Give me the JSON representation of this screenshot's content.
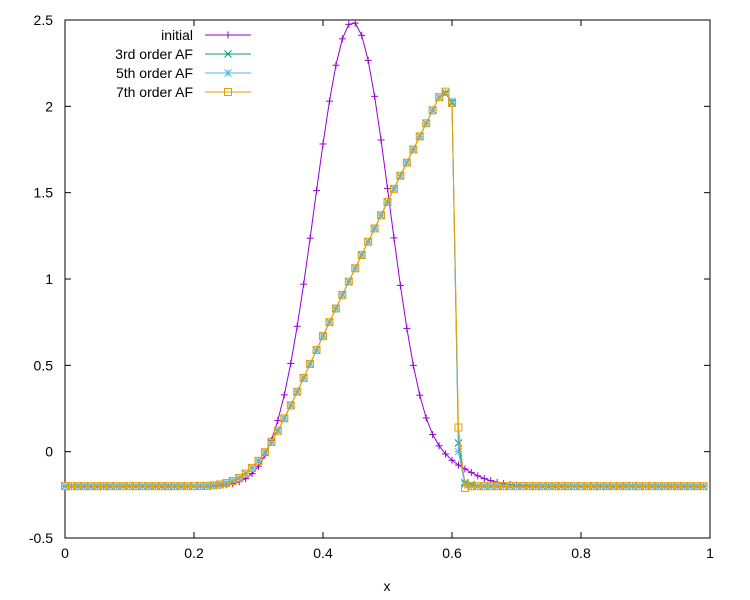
{
  "chart_data": {
    "type": "line",
    "title": "",
    "xlabel": "x",
    "ylabel": "",
    "xlim": [
      0,
      1
    ],
    "ylim": [
      -0.5,
      2.5
    ],
    "xticks": [
      0,
      0.2,
      0.4,
      0.6,
      0.8,
      1
    ],
    "xtick_labels": [
      "0",
      "0.2",
      "0.4",
      "0.6",
      "0.8",
      "1"
    ],
    "yticks": [
      -0.5,
      0,
      0.5,
      1,
      1.5,
      2,
      2.5
    ],
    "ytick_labels": [
      "-0.5",
      "0",
      "0.5",
      "1",
      "1.5",
      "2",
      "2.5"
    ],
    "grid": false,
    "legend_position": "top-left",
    "series": [
      {
        "name": "initial",
        "color": "#9400d3",
        "marker": "plus",
        "x": [
          0,
          0.01,
          0.02,
          0.03,
          0.04,
          0.05,
          0.06,
          0.07,
          0.08,
          0.09,
          0.1,
          0.11,
          0.12,
          0.13,
          0.14,
          0.15,
          0.16,
          0.17,
          0.18,
          0.19,
          0.2,
          0.21,
          0.22,
          0.23,
          0.24,
          0.25,
          0.26,
          0.27,
          0.28,
          0.29,
          0.3,
          0.31,
          0.32,
          0.33,
          0.34,
          0.35,
          0.36,
          0.37,
          0.38,
          0.39,
          0.4,
          0.41,
          0.42,
          0.43,
          0.44,
          0.45,
          0.46,
          0.47,
          0.48,
          0.49,
          0.5,
          0.51,
          0.52,
          0.53,
          0.54,
          0.55,
          0.56,
          0.57,
          0.58,
          0.59,
          0.6,
          0.61,
          0.62,
          0.63,
          0.64,
          0.65,
          0.66,
          0.67,
          0.68,
          0.69,
          0.7,
          0.71,
          0.72,
          0.73,
          0.74,
          0.75,
          0.76,
          0.77,
          0.78,
          0.79,
          0.8,
          0.81,
          0.82,
          0.83,
          0.84,
          0.85,
          0.86,
          0.87,
          0.88,
          0.89,
          0.9,
          0.91,
          0.92,
          0.93,
          0.94,
          0.95,
          0.96,
          0.97,
          0.98,
          0.99
        ],
        "y": [
          -0.2,
          -0.2,
          -0.2,
          -0.2,
          -0.2,
          -0.2,
          -0.2,
          -0.2,
          -0.2,
          -0.2,
          -0.2,
          -0.2,
          -0.2,
          -0.2,
          -0.2,
          -0.2,
          -0.2,
          -0.2,
          -0.2,
          -0.2,
          -0.2,
          -0.2,
          -0.199,
          -0.198,
          -0.196,
          -0.192,
          -0.186,
          -0.174,
          -0.156,
          -0.127,
          -0.084,
          -0.021,
          0.065,
          0.181,
          0.329,
          0.511,
          0.726,
          0.97,
          1.236,
          1.512,
          1.782,
          2.03,
          2.238,
          2.391,
          2.475,
          2.482,
          2.411,
          2.266,
          2.058,
          1.805,
          1.525,
          1.238,
          0.963,
          0.714,
          0.5,
          0.327,
          0.195,
          0.099,
          0.034,
          -0.013,
          -0.05,
          -0.078,
          -0.1,
          -0.12,
          -0.14,
          -0.156,
          -0.168,
          -0.178,
          -0.185,
          -0.19,
          -0.194,
          -0.196,
          -0.198,
          -0.199,
          -0.2,
          -0.2,
          -0.2,
          -0.2,
          -0.2,
          -0.2,
          -0.2,
          -0.2,
          -0.2,
          -0.2,
          -0.2,
          -0.2,
          -0.2,
          -0.2,
          -0.2,
          -0.2,
          -0.2,
          -0.2,
          -0.2,
          -0.2,
          -0.2,
          -0.2,
          -0.2,
          -0.2,
          -0.2,
          -0.2
        ]
      },
      {
        "name": "3rd order AF",
        "color": "#009e73",
        "marker": "x",
        "x": [
          0,
          0.01,
          0.02,
          0.03,
          0.04,
          0.05,
          0.06,
          0.07,
          0.08,
          0.09,
          0.1,
          0.11,
          0.12,
          0.13,
          0.14,
          0.15,
          0.16,
          0.17,
          0.18,
          0.19,
          0.2,
          0.21,
          0.22,
          0.23,
          0.24,
          0.25,
          0.26,
          0.27,
          0.28,
          0.29,
          0.3,
          0.31,
          0.32,
          0.33,
          0.34,
          0.35,
          0.36,
          0.37,
          0.38,
          0.39,
          0.4,
          0.41,
          0.42,
          0.43,
          0.44,
          0.45,
          0.46,
          0.47,
          0.48,
          0.49,
          0.5,
          0.51,
          0.52,
          0.53,
          0.54,
          0.55,
          0.56,
          0.57,
          0.58,
          0.59,
          0.6,
          0.61,
          0.62,
          0.63,
          0.64,
          0.65,
          0.66,
          0.67,
          0.68,
          0.69,
          0.7,
          0.71,
          0.72,
          0.73,
          0.74,
          0.75,
          0.76,
          0.77,
          0.78,
          0.79,
          0.8,
          0.81,
          0.82,
          0.83,
          0.84,
          0.85,
          0.86,
          0.87,
          0.88,
          0.89,
          0.9,
          0.91,
          0.92,
          0.93,
          0.94,
          0.95,
          0.96,
          0.97,
          0.98,
          0.99
        ],
        "y": [
          -0.2,
          -0.2,
          -0.2,
          -0.2,
          -0.2,
          -0.2,
          -0.2,
          -0.2,
          -0.2,
          -0.2,
          -0.2,
          -0.2,
          -0.2,
          -0.2,
          -0.2,
          -0.2,
          -0.2,
          -0.2,
          -0.2,
          -0.2,
          -0.2,
          -0.199,
          -0.198,
          -0.195,
          -0.19,
          -0.182,
          -0.17,
          -0.152,
          -0.127,
          -0.094,
          -0.053,
          -0.003,
          0.056,
          0.121,
          0.193,
          0.268,
          0.347,
          0.427,
          0.508,
          0.589,
          0.669,
          0.75,
          0.829,
          0.908,
          0.985,
          1.062,
          1.139,
          1.216,
          1.293,
          1.369,
          1.446,
          1.522,
          1.598,
          1.674,
          1.75,
          1.826,
          1.902,
          1.977,
          2.053,
          2.075,
          2.02,
          0.05,
          -0.18,
          -0.19,
          -0.2,
          -0.2,
          -0.2,
          -0.2,
          -0.2,
          -0.2,
          -0.2,
          -0.2,
          -0.2,
          -0.2,
          -0.2,
          -0.2,
          -0.2,
          -0.2,
          -0.2,
          -0.2,
          -0.2,
          -0.2,
          -0.2,
          -0.2,
          -0.2,
          -0.2,
          -0.2,
          -0.2,
          -0.2,
          -0.2,
          -0.2,
          -0.2,
          -0.2,
          -0.2,
          -0.2,
          -0.2,
          -0.2,
          -0.2,
          -0.2,
          -0.2
        ]
      },
      {
        "name": "5th order AF",
        "color": "#56b4e9",
        "marker": "star",
        "x": [
          0,
          0.01,
          0.02,
          0.03,
          0.04,
          0.05,
          0.06,
          0.07,
          0.08,
          0.09,
          0.1,
          0.11,
          0.12,
          0.13,
          0.14,
          0.15,
          0.16,
          0.17,
          0.18,
          0.19,
          0.2,
          0.21,
          0.22,
          0.23,
          0.24,
          0.25,
          0.26,
          0.27,
          0.28,
          0.29,
          0.3,
          0.31,
          0.32,
          0.33,
          0.34,
          0.35,
          0.36,
          0.37,
          0.38,
          0.39,
          0.4,
          0.41,
          0.42,
          0.43,
          0.44,
          0.45,
          0.46,
          0.47,
          0.48,
          0.49,
          0.5,
          0.51,
          0.52,
          0.53,
          0.54,
          0.55,
          0.56,
          0.57,
          0.58,
          0.59,
          0.6,
          0.61,
          0.62,
          0.63,
          0.64,
          0.65,
          0.66,
          0.67,
          0.68,
          0.69,
          0.7,
          0.71,
          0.72,
          0.73,
          0.74,
          0.75,
          0.76,
          0.77,
          0.78,
          0.79,
          0.8,
          0.81,
          0.82,
          0.83,
          0.84,
          0.85,
          0.86,
          0.87,
          0.88,
          0.89,
          0.9,
          0.91,
          0.92,
          0.93,
          0.94,
          0.95,
          0.96,
          0.97,
          0.98,
          0.99
        ],
        "y": [
          -0.2,
          -0.2,
          -0.2,
          -0.2,
          -0.2,
          -0.2,
          -0.2,
          -0.2,
          -0.2,
          -0.2,
          -0.2,
          -0.2,
          -0.2,
          -0.2,
          -0.2,
          -0.2,
          -0.2,
          -0.2,
          -0.2,
          -0.2,
          -0.2,
          -0.199,
          -0.198,
          -0.195,
          -0.19,
          -0.182,
          -0.17,
          -0.152,
          -0.127,
          -0.094,
          -0.053,
          -0.003,
          0.056,
          0.121,
          0.193,
          0.268,
          0.347,
          0.427,
          0.508,
          0.589,
          0.669,
          0.75,
          0.829,
          0.908,
          0.985,
          1.062,
          1.139,
          1.216,
          1.293,
          1.369,
          1.446,
          1.522,
          1.598,
          1.674,
          1.75,
          1.826,
          1.902,
          1.977,
          2.053,
          2.08,
          2.03,
          0.0,
          -0.19,
          -0.2,
          -0.2,
          -0.2,
          -0.2,
          -0.2,
          -0.2,
          -0.2,
          -0.2,
          -0.2,
          -0.2,
          -0.2,
          -0.2,
          -0.2,
          -0.2,
          -0.2,
          -0.2,
          -0.2,
          -0.2,
          -0.2,
          -0.2,
          -0.2,
          -0.2,
          -0.2,
          -0.2,
          -0.2,
          -0.2,
          -0.2,
          -0.2,
          -0.2,
          -0.2,
          -0.2,
          -0.2,
          -0.2,
          -0.2,
          -0.2,
          -0.2,
          -0.2
        ]
      },
      {
        "name": "7th order AF",
        "color": "#e69f00",
        "marker": "square",
        "x": [
          0,
          0.01,
          0.02,
          0.03,
          0.04,
          0.05,
          0.06,
          0.07,
          0.08,
          0.09,
          0.1,
          0.11,
          0.12,
          0.13,
          0.14,
          0.15,
          0.16,
          0.17,
          0.18,
          0.19,
          0.2,
          0.21,
          0.22,
          0.23,
          0.24,
          0.25,
          0.26,
          0.27,
          0.28,
          0.29,
          0.3,
          0.31,
          0.32,
          0.33,
          0.34,
          0.35,
          0.36,
          0.37,
          0.38,
          0.39,
          0.4,
          0.41,
          0.42,
          0.43,
          0.44,
          0.45,
          0.46,
          0.47,
          0.48,
          0.49,
          0.5,
          0.51,
          0.52,
          0.53,
          0.54,
          0.55,
          0.56,
          0.57,
          0.58,
          0.59,
          0.6,
          0.61,
          0.62,
          0.63,
          0.64,
          0.65,
          0.66,
          0.67,
          0.68,
          0.69,
          0.7,
          0.71,
          0.72,
          0.73,
          0.74,
          0.75,
          0.76,
          0.77,
          0.78,
          0.79,
          0.8,
          0.81,
          0.82,
          0.83,
          0.84,
          0.85,
          0.86,
          0.87,
          0.88,
          0.89,
          0.9,
          0.91,
          0.92,
          0.93,
          0.94,
          0.95,
          0.96,
          0.97,
          0.98,
          0.99
        ],
        "y": [
          -0.2,
          -0.2,
          -0.2,
          -0.2,
          -0.2,
          -0.2,
          -0.2,
          -0.2,
          -0.2,
          -0.2,
          -0.2,
          -0.2,
          -0.2,
          -0.2,
          -0.2,
          -0.2,
          -0.2,
          -0.2,
          -0.2,
          -0.2,
          -0.2,
          -0.199,
          -0.198,
          -0.195,
          -0.19,
          -0.182,
          -0.17,
          -0.152,
          -0.127,
          -0.094,
          -0.053,
          -0.003,
          0.056,
          0.121,
          0.193,
          0.268,
          0.347,
          0.427,
          0.508,
          0.589,
          0.669,
          0.75,
          0.829,
          0.908,
          0.985,
          1.062,
          1.139,
          1.216,
          1.293,
          1.369,
          1.446,
          1.522,
          1.598,
          1.674,
          1.75,
          1.826,
          1.902,
          1.977,
          2.053,
          2.085,
          2.02,
          0.14,
          -0.21,
          -0.2,
          -0.2,
          -0.2,
          -0.2,
          -0.2,
          -0.2,
          -0.2,
          -0.2,
          -0.2,
          -0.2,
          -0.2,
          -0.2,
          -0.2,
          -0.2,
          -0.2,
          -0.2,
          -0.2,
          -0.2,
          -0.2,
          -0.2,
          -0.2,
          -0.2,
          -0.2,
          -0.2,
          -0.2,
          -0.2,
          -0.2,
          -0.2,
          -0.2,
          -0.2,
          -0.2,
          -0.2,
          -0.2,
          -0.2,
          -0.2,
          -0.2,
          -0.2
        ]
      }
    ]
  }
}
